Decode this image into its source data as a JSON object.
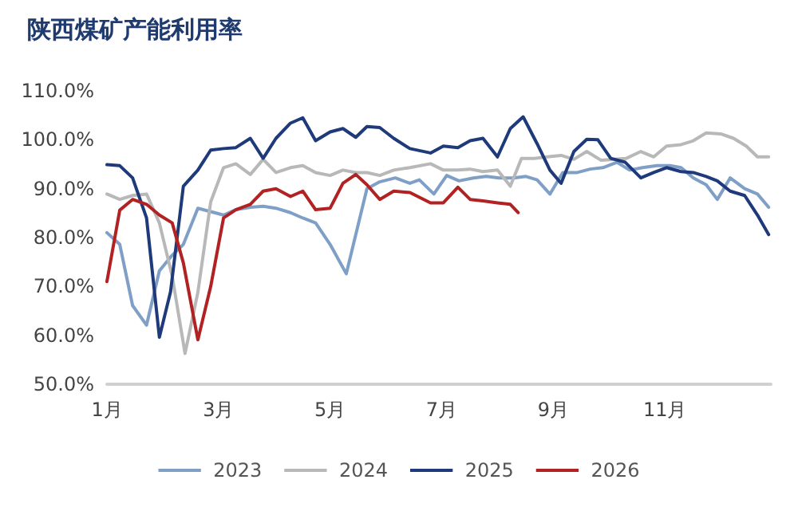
{
  "chart_data": {
    "type": "line",
    "title": "陕西煤矿产能利用率",
    "xlim": [
      1,
      12.9
    ],
    "xticks": [
      {
        "value": 1,
        "label": "1月"
      },
      {
        "value": 3,
        "label": "3月"
      },
      {
        "value": 5,
        "label": "5月"
      },
      {
        "value": 7,
        "label": "7月"
      },
      {
        "value": 9,
        "label": "9月"
      },
      {
        "value": 11,
        "label": "11月"
      }
    ],
    "ylim": [
      50,
      110
    ],
    "yticks": [
      {
        "value": 50,
        "label": "50.0%"
      },
      {
        "value": 60,
        "label": "60.0%"
      },
      {
        "value": 70,
        "label": "70.0%"
      },
      {
        "value": 80,
        "label": "80.0%"
      },
      {
        "value": 90,
        "label": "90.0%"
      },
      {
        "value": 100,
        "label": "100.0%"
      },
      {
        "value": 110,
        "label": "110.0%"
      }
    ],
    "grid": false,
    "legend": "bottom",
    "marker": "none",
    "line_style": "solid",
    "series": [
      {
        "name": "2023",
        "color": "#7f9fc6",
        "x": [
          1,
          1.23,
          1.46,
          1.71,
          1.94,
          2.17,
          2.37,
          2.63,
          2.86,
          3.09,
          3.31,
          3.57,
          3.8,
          4.03,
          4.29,
          4.51,
          4.74,
          5,
          5.29,
          5.66,
          5.89,
          6.17,
          6.43,
          6.6,
          6.86,
          7.09,
          7.31,
          7.57,
          7.8,
          8.03,
          8.29,
          8.51,
          8.71,
          8.94,
          9.17,
          9.43,
          9.66,
          9.89,
          10.14,
          10.37,
          10.6,
          10.86,
          11.09,
          11.29,
          11.51,
          11.74,
          11.94,
          12.17,
          12.43,
          12.66,
          12.86
        ],
        "values": [
          81,
          78.6,
          66.1,
          62.1,
          73.2,
          76.4,
          78.6,
          86,
          85.3,
          84.6,
          85.7,
          86.2,
          86.4,
          86,
          85.1,
          84,
          83,
          78.6,
          72.6,
          90,
          91.4,
          92.2,
          91.1,
          91.8,
          88.9,
          92.7,
          91.6,
          92.2,
          92.5,
          92.2,
          92.2,
          92.5,
          91.8,
          88.9,
          93.3,
          93.3,
          94,
          94.3,
          95.4,
          93.8,
          94.3,
          94.7,
          94.7,
          94.3,
          92.2,
          90.8,
          87.8,
          92.2,
          90,
          88.9,
          86.2
        ]
      },
      {
        "name": "2024",
        "color": "#b8b8b8",
        "x": [
          1,
          1.23,
          1.46,
          1.71,
          1.94,
          2.17,
          2.4,
          2.63,
          2.86,
          3.09,
          3.31,
          3.57,
          3.8,
          4.03,
          4.29,
          4.51,
          4.74,
          5,
          5.23,
          5.46,
          5.66,
          5.89,
          6.14,
          6.43,
          6.8,
          7.03,
          7.29,
          7.51,
          7.74,
          8,
          8.23,
          8.43,
          8.66,
          8.89,
          9.14,
          9.37,
          9.6,
          9.86,
          10.09,
          10.31,
          10.57,
          10.8,
          11.03,
          11.29,
          11.51,
          11.74,
          12,
          12.23,
          12.46,
          12.66,
          12.86
        ],
        "values": [
          88.9,
          87.8,
          88.6,
          88.9,
          83,
          72.1,
          56.3,
          68.8,
          87.3,
          94.3,
          95.1,
          92.9,
          96,
          93.3,
          94.3,
          94.7,
          93.3,
          92.7,
          93.8,
          93.3,
          93.3,
          92.7,
          93.8,
          94.3,
          95.1,
          93.8,
          93.8,
          94,
          93.5,
          93.8,
          90.5,
          96.2,
          96.2,
          96.5,
          96.8,
          96,
          97.6,
          95.8,
          96,
          96.2,
          97.6,
          96.5,
          98.7,
          99,
          99.8,
          101.4,
          101.2,
          100.3,
          98.7,
          96.5,
          96.5
        ]
      },
      {
        "name": "2025",
        "color": "#1f3a7a",
        "x": [
          1,
          1.23,
          1.46,
          1.71,
          1.94,
          2.14,
          2.37,
          2.63,
          2.86,
          3.09,
          3.31,
          3.57,
          3.8,
          4.03,
          4.29,
          4.51,
          4.74,
          5,
          5.23,
          5.46,
          5.66,
          5.89,
          6.14,
          6.43,
          6.8,
          7.03,
          7.29,
          7.51,
          7.74,
          8,
          8.23,
          8.46,
          8.71,
          8.94,
          9.14,
          9.37,
          9.6,
          9.8,
          10.03,
          10.29,
          10.57,
          10.8,
          11.03,
          11.29,
          11.51,
          11.74,
          11.94,
          12.17,
          12.43,
          12.66,
          12.86
        ],
        "values": [
          94.9,
          94.7,
          92.2,
          84,
          59.6,
          68.9,
          90.5,
          93.8,
          97.9,
          98.2,
          98.4,
          100.3,
          96.2,
          100.3,
          103.4,
          104.5,
          99.8,
          101.6,
          102.3,
          100.5,
          102.7,
          102.5,
          100.3,
          98.2,
          97.3,
          98.7,
          98.4,
          99.8,
          100.3,
          96.5,
          102.3,
          104.7,
          99.2,
          93.8,
          91.1,
          97.6,
          100.1,
          100,
          96.2,
          95.4,
          92.2,
          93.3,
          94.3,
          93.5,
          93.3,
          92.5,
          91.6,
          89.5,
          88.6,
          84.6,
          80.6
        ]
      },
      {
        "name": "2026",
        "color": "#b22222",
        "x": [
          1,
          1.23,
          1.46,
          1.71,
          1.94,
          2.17,
          2.37,
          2.63,
          2.86,
          3.09,
          3.31,
          3.57,
          3.8,
          4.03,
          4.29,
          4.51,
          4.74,
          5,
          5.23,
          5.46,
          5.66,
          5.89,
          6.14,
          6.43,
          6.8,
          7.03,
          7.29,
          7.51,
          7.74,
          8,
          8.23,
          8.37
        ],
        "values": [
          71,
          85.6,
          87.8,
          86.8,
          84.6,
          83,
          74.8,
          59.1,
          70,
          84,
          85.7,
          86.8,
          89.5,
          90,
          88.4,
          89.5,
          85.7,
          86,
          91.1,
          92.9,
          90.8,
          87.8,
          89.5,
          89.2,
          87.1,
          87.1,
          90.3,
          87.8,
          87.5,
          87.1,
          86.8,
          85.1
        ]
      }
    ]
  }
}
